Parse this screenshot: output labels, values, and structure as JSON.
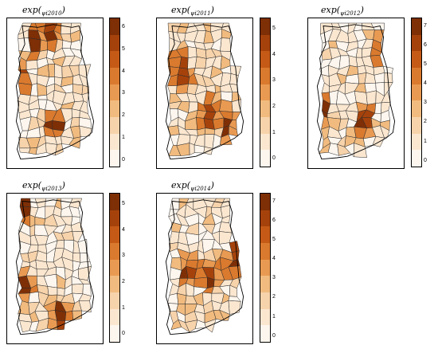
{
  "color_ramp": [
    "#fdf6ee",
    "#fbe7d0",
    "#f7d3ab",
    "#f1bb7f",
    "#e99a52",
    "#da7a2e",
    "#c55a17",
    "#a5420b",
    "#7e2f06"
  ],
  "panels": [
    {
      "id": "2010",
      "title_main": "exp(",
      "title_sub": "ψi2010",
      "title_close": ")",
      "ticks": [
        "0",
        "1",
        "2",
        "3",
        "4",
        "5",
        "6"
      ],
      "max": 6.4,
      "tone": 0.4,
      "hot": [
        [
          0.28,
          0.1
        ],
        [
          0.45,
          0.05
        ],
        [
          0.1,
          0.35
        ],
        [
          0.5,
          0.72
        ]
      ]
    },
    {
      "id": "2011",
      "title_main": "exp(",
      "title_sub": "ψi2011",
      "title_close": ")",
      "ticks": [
        "0",
        "1",
        "2",
        "3",
        "4",
        "5"
      ],
      "max": 5.4,
      "tone": 0.45,
      "hot": [
        [
          0.22,
          0.3
        ],
        [
          0.25,
          0.38
        ],
        [
          0.78,
          0.72
        ],
        [
          0.55,
          0.65
        ]
      ]
    },
    {
      "id": "2012",
      "title_main": "exp(",
      "title_sub": "ψi2012",
      "title_close": ")",
      "ticks": [
        "0",
        "1",
        "2",
        "3",
        "4",
        "5",
        "6",
        "7"
      ],
      "max": 7.4,
      "tone": 0.15,
      "hot": [
        [
          0.1,
          0.62
        ],
        [
          0.82,
          0.18
        ],
        [
          0.6,
          0.7
        ]
      ]
    },
    {
      "id": "2013",
      "title_main": "exp(",
      "title_sub": "ψi2013",
      "title_close": ")",
      "ticks": [
        "0",
        "1",
        "2",
        "3",
        "4",
        "5"
      ],
      "max": 5.4,
      "tone": 0.35,
      "hot": [
        [
          0.15,
          0.62
        ],
        [
          0.12,
          0.08
        ],
        [
          0.55,
          0.85
        ]
      ]
    },
    {
      "id": "2014",
      "title_main": "exp(",
      "title_sub": "ψi2014",
      "title_close": ")",
      "ticks": [
        "0",
        "1",
        "2",
        "3",
        "4",
        "5",
        "6",
        "7"
      ],
      "max": 7.4,
      "tone": 0.3,
      "hot": [
        [
          0.88,
          0.38
        ],
        [
          0.85,
          0.45
        ],
        [
          0.3,
          0.52
        ],
        [
          0.55,
          0.55
        ]
      ]
    }
  ]
}
